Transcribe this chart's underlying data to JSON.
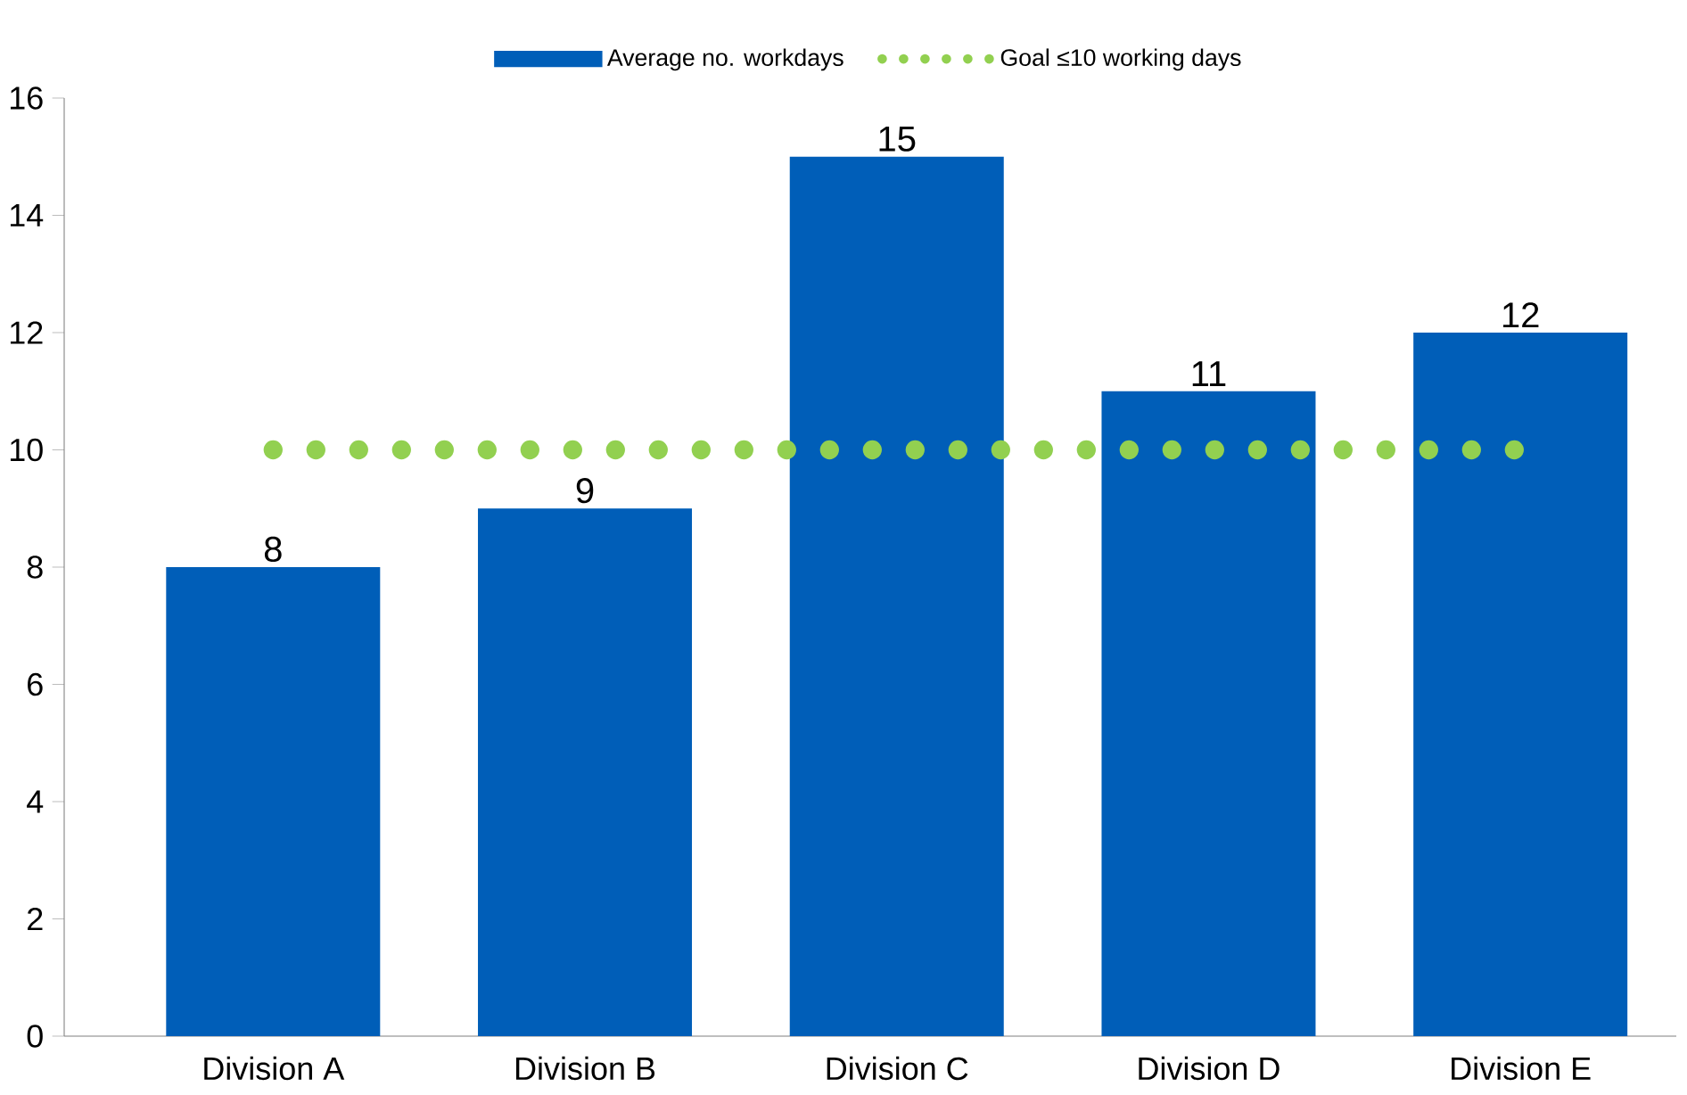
{
  "chart_data": {
    "type": "bar",
    "categories": [
      "Division A",
      "Division B",
      "Division C",
      "Division D",
      "Division E"
    ],
    "series": [
      {
        "name": "Average no. workdays",
        "color": "#005eb8",
        "values": [
          8,
          9,
          15,
          11,
          12
        ],
        "value_labels": [
          "8",
          "9",
          "15",
          "11",
          "12"
        ]
      },
      {
        "name": "Goal ≤10 working days",
        "type": "line",
        "line_style": "dotted",
        "color": "#92d050",
        "values": [
          10,
          10,
          10,
          10,
          10
        ]
      }
    ],
    "ylim": [
      0,
      16
    ],
    "yticks": [
      0,
      2,
      4,
      6,
      8,
      10,
      12,
      14,
      16
    ],
    "grid": false,
    "legend": "top"
  }
}
